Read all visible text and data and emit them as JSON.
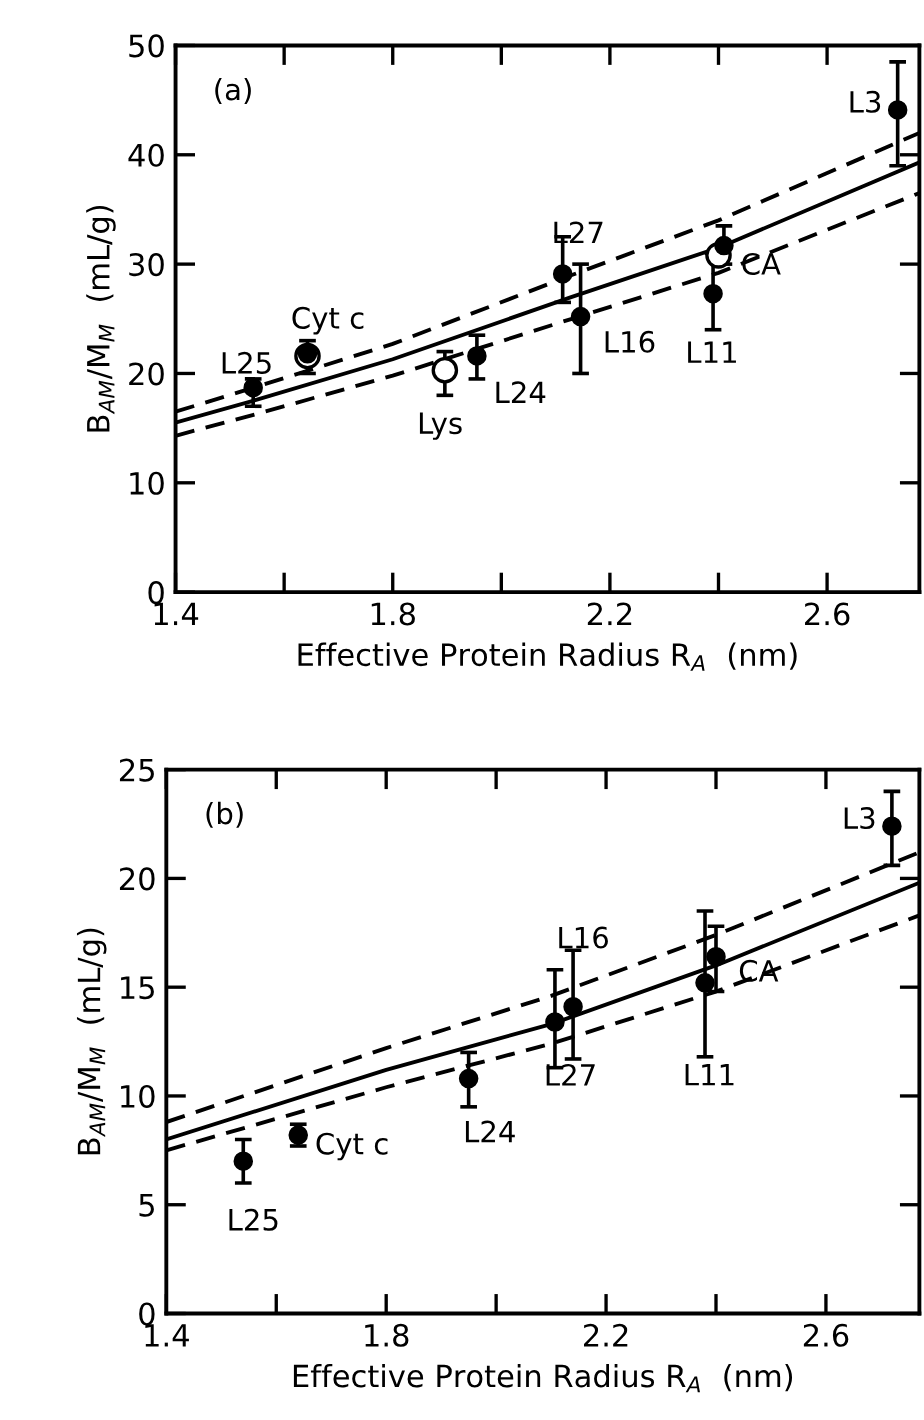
{
  "chart_data": [
    {
      "type": "scatter",
      "xlabel": "Effective Protein Radius R$_{A}$  (nm)",
      "ylabel": "B$_{AM}$/M$_{M}$  (mL/g)",
      "xlim": [
        1.4,
        2.77
      ],
      "ylim": [
        0,
        50
      ],
      "xticks": [
        1.4,
        {
          "value": 1.6,
          "label": null
        },
        1.8,
        {
          "value": 2.0,
          "label": null
        },
        2.2,
        {
          "value": 2.4,
          "label": null
        },
        2.6
      ],
      "yticks": [
        0,
        10,
        20,
        30,
        40,
        50
      ],
      "grid": false,
      "legend": false,
      "series": [
        {
          "type": "scatter",
          "marker": "circle",
          "color": "#000000",
          "x": [
            1.543,
            1.643,
            1.955,
            2.113,
            2.146,
            2.39,
            2.41,
            2.73
          ],
          "values": [
            18.7,
            21.8,
            21.6,
            29.1,
            25.2,
            27.3,
            31.7,
            44.1
          ],
          "errors": [
            [
              17,
              19.5
            ],
            [
              20,
              23
            ],
            [
              19.5,
              23.5
            ],
            [
              26.5,
              32.5
            ],
            [
              20,
              30
            ],
            [
              24,
              31
            ],
            [
              30,
              33.5
            ],
            [
              39,
              48.5
            ]
          ]
        },
        {
          "type": "scatter",
          "marker": "circle",
          "color": "#ffffff",
          "x": [
            1.643,
            1.896,
            2.4
          ],
          "values": [
            21.6,
            20.3,
            30.8
          ],
          "errors": [
            null,
            [
              18,
              22
            ],
            null
          ]
        },
        {
          "type": "line",
          "color": "#000000",
          "line_style": "solid",
          "x": [
            1.4,
            1.55,
            1.8,
            2.13,
            2.4,
            2.77
          ],
          "values": [
            15.5,
            17.6,
            21.3,
            27,
            31.5,
            39.3
          ]
        },
        {
          "type": "line",
          "color": "#000000",
          "line_style": "dashed",
          "x": [
            1.4,
            1.55,
            1.8,
            2.13,
            2.4,
            2.77
          ],
          "values": [
            16.5,
            18.8,
            22.7,
            29,
            34,
            42
          ]
        },
        {
          "type": "line",
          "color": "#000000",
          "line_style": "dashed",
          "x": [
            1.4,
            1.55,
            1.8,
            2.13,
            2.4,
            2.77
          ],
          "values": [
            14.3,
            16.3,
            19.8,
            25,
            29.2,
            36.5
          ]
        }
      ],
      "annotations": [
        "(a)",
        {
          "text": "L25",
          "x": 1.543,
          "y": 18.7
        },
        {
          "text": "Cyt c",
          "x": 1.643,
          "y": 21.8
        },
        {
          "text": "Lys",
          "x": 1.896,
          "y": 20.3
        },
        {
          "text": "L24",
          "x": 1.955,
          "y": 21.6
        },
        {
          "text": "L27",
          "x": 2.113,
          "y": 29.1
        },
        {
          "text": "L16",
          "x": 2.146,
          "y": 25.2
        },
        {
          "text": "L11",
          "x": 2.39,
          "y": 27.3
        },
        {
          "text": "CA",
          "x": 2.4,
          "y": 30.8
        },
        {
          "text": "L3",
          "x": 2.73,
          "y": 44.1
        }
      ]
    },
    {
      "type": "scatter",
      "xlabel": "Effective Protein Radius R$_{A}$  (nm)",
      "ylabel": "B$_{AM}$/M$_{M}$  (mL/g)",
      "xlim": [
        1.4,
        2.77
      ],
      "ylim": [
        0,
        25
      ],
      "xticks": [
        1.4,
        {
          "value": 1.6,
          "label": null
        },
        1.8,
        {
          "value": 2.0,
          "label": null
        },
        2.2,
        {
          "value": 2.4,
          "label": null
        },
        2.6
      ],
      "yticks": [
        0,
        5,
        10,
        15,
        20,
        25
      ],
      "grid": false,
      "legend": false,
      "series": [
        {
          "type": "scatter",
          "marker": "circle",
          "color": "#000000",
          "x": [
            1.54,
            1.64,
            1.95,
            2.107,
            2.14,
            2.38,
            2.4,
            2.72
          ],
          "values": [
            7.0,
            8.2,
            10.8,
            13.4,
            14.1,
            15.2,
            16.4,
            22.4
          ],
          "errors": [
            [
              6,
              8
            ],
            [
              7.7,
              8.7
            ],
            [
              9.5,
              12
            ],
            [
              11.3,
              15.8
            ],
            [
              11.7,
              16.7
            ],
            [
              11.8,
              18.5
            ],
            [
              14.8,
              17.8
            ],
            [
              20.6,
              24
            ]
          ]
        },
        {
          "type": "line",
          "color": "#000000",
          "line_style": "solid",
          "x": [
            1.4,
            1.8,
            2.1,
            2.4,
            2.77
          ],
          "values": [
            8.0,
            11.2,
            13.3,
            16,
            19.8
          ]
        },
        {
          "type": "line",
          "color": "#000000",
          "line_style": "dashed",
          "x": [
            1.4,
            1.8,
            2.1,
            2.4,
            2.77
          ],
          "values": [
            8.8,
            12.2,
            14.6,
            17.4,
            21.2
          ]
        },
        {
          "type": "line",
          "color": "#000000",
          "line_style": "dashed",
          "x": [
            1.4,
            1.8,
            2.1,
            2.4,
            2.77
          ],
          "values": [
            7.5,
            10.4,
            12.4,
            14.8,
            18.3
          ]
        }
      ],
      "annotations": [
        "(b)",
        {
          "text": "L25",
          "x": 1.54,
          "y": 7.0
        },
        {
          "text": "Cyt c",
          "x": 1.64,
          "y": 8.2
        },
        {
          "text": "L24",
          "x": 1.95,
          "y": 10.8
        },
        {
          "text": "L27",
          "x": 2.107,
          "y": 13.4
        },
        {
          "text": "L16",
          "x": 2.14,
          "y": 14.1
        },
        {
          "text": "L11",
          "x": 2.38,
          "y": 15.2
        },
        {
          "text": "CA",
          "x": 2.4,
          "y": 16.4
        },
        {
          "text": "L3",
          "x": 2.72,
          "y": 22.4
        }
      ]
    }
  ]
}
